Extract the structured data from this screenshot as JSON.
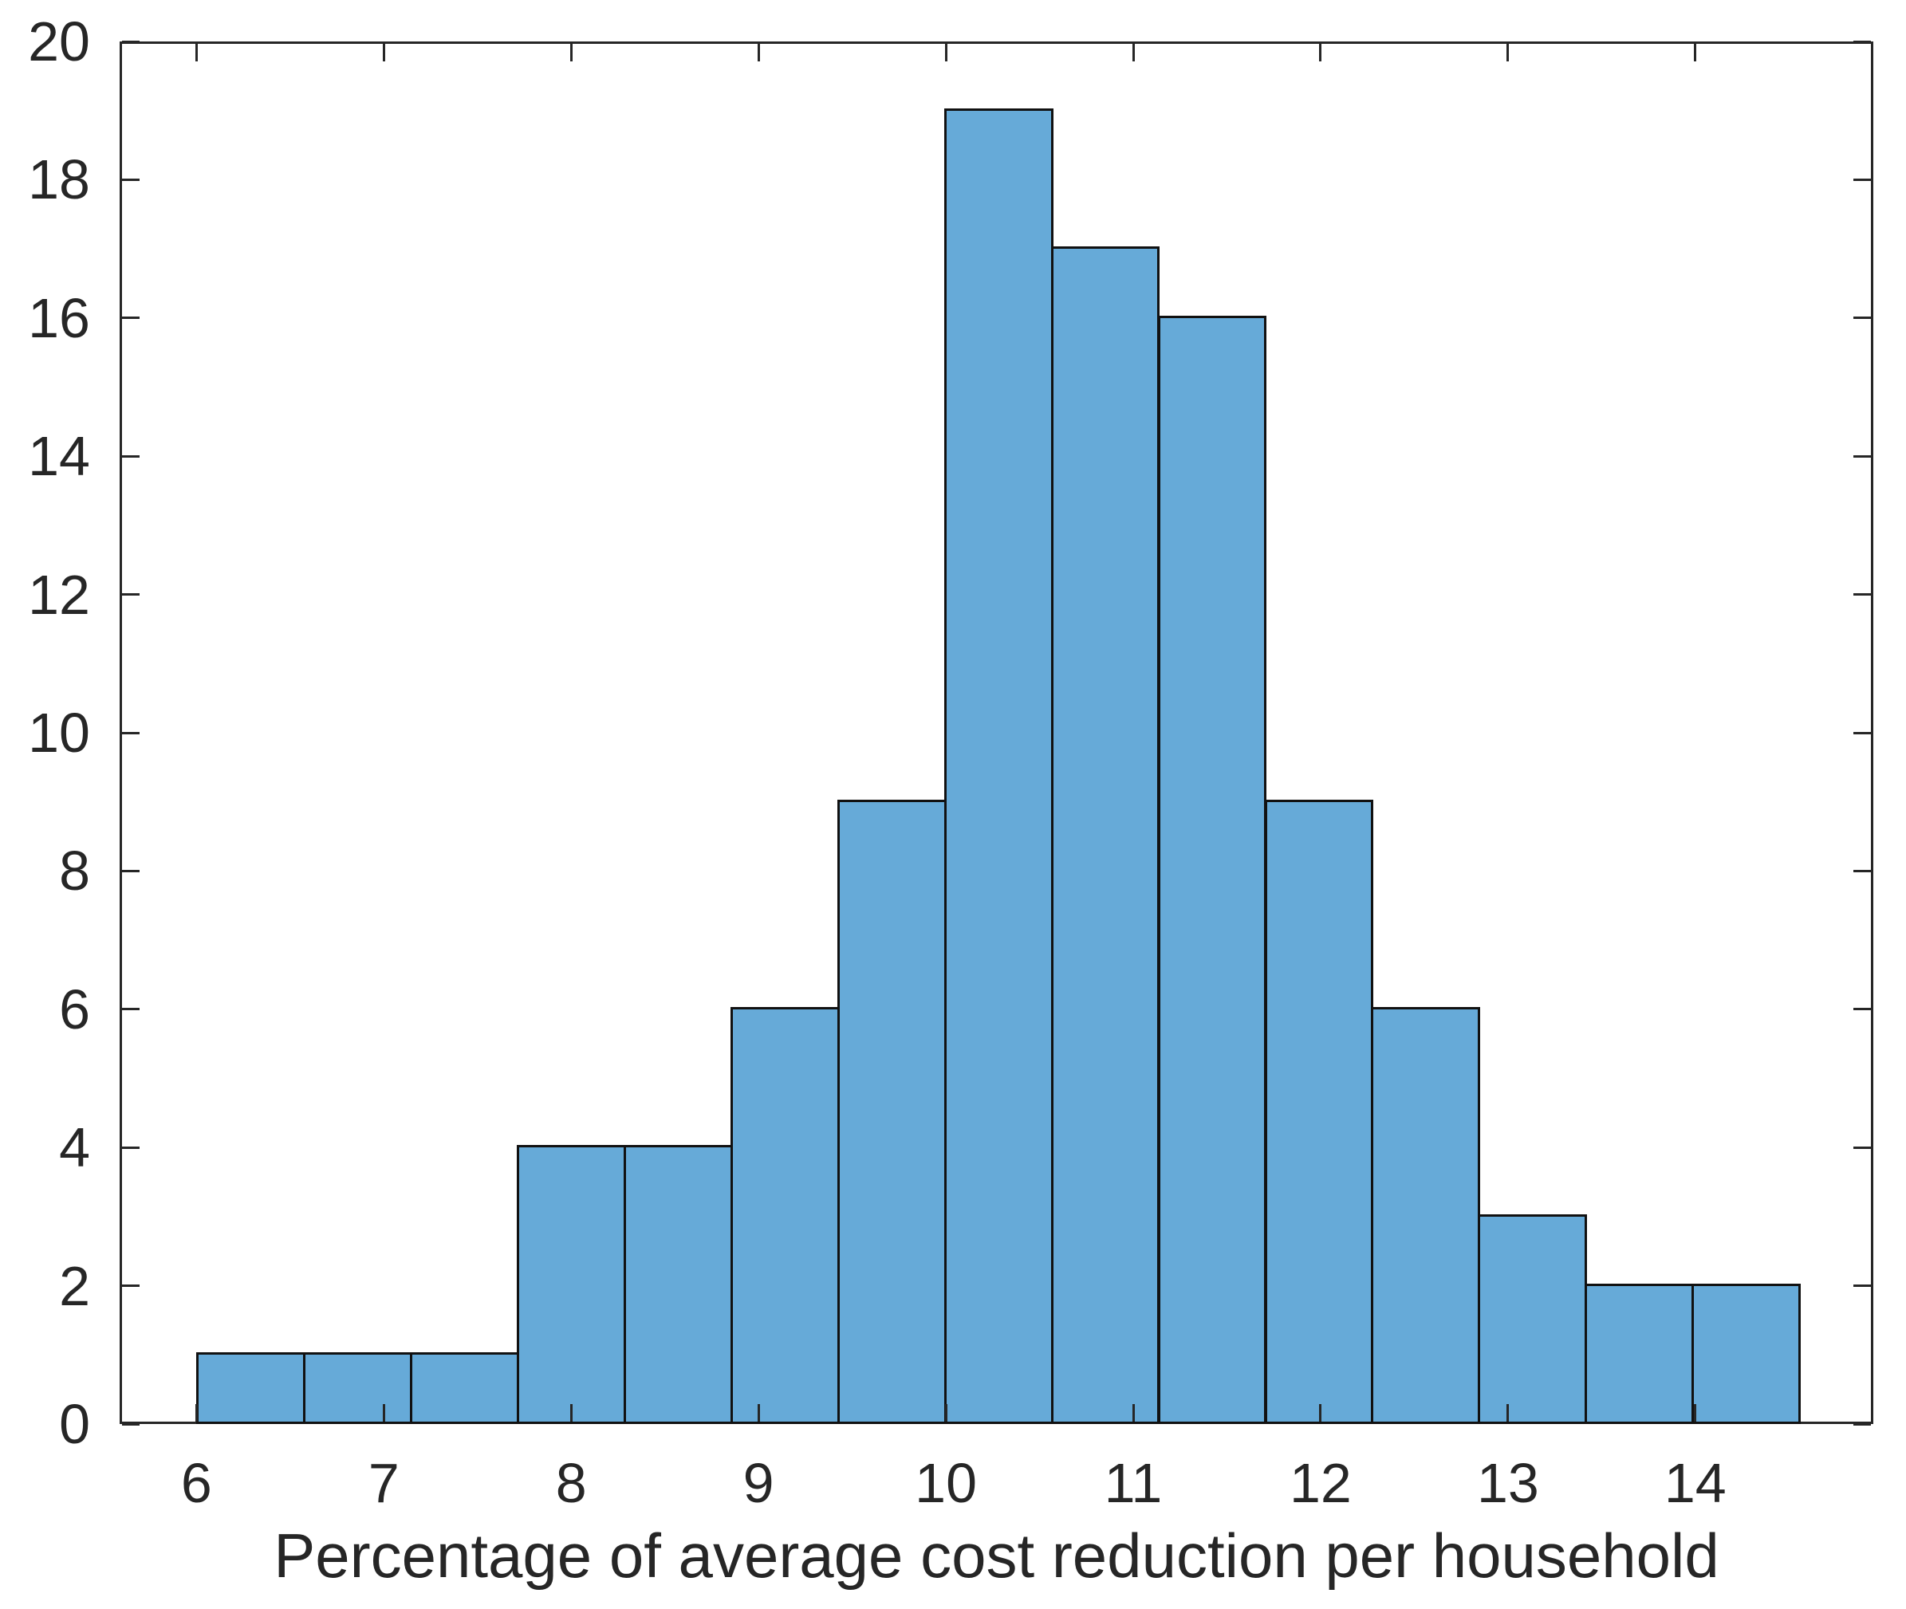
{
  "chart_data": {
    "type": "bar",
    "subtype": "histogram",
    "title": "",
    "xlabel": "Percentage of average cost reduction per household",
    "ylabel": "",
    "bin_edges": [
      6.0,
      6.57,
      7.14,
      7.71,
      8.28,
      8.85,
      9.42,
      9.99,
      10.56,
      11.13,
      11.7,
      12.27,
      12.84,
      13.41,
      13.98,
      14.55
    ],
    "counts": [
      1,
      1,
      1,
      4,
      4,
      6,
      9,
      19,
      17,
      16,
      9,
      6,
      3,
      2,
      2
    ],
    "xticks": [
      6,
      7,
      8,
      9,
      10,
      11,
      12,
      13,
      14
    ],
    "yticks": [
      0,
      2,
      4,
      6,
      8,
      10,
      12,
      14,
      16,
      18,
      20
    ],
    "xlim": [
      5.59,
      14.95
    ],
    "ylim": [
      0,
      20
    ],
    "grid": false,
    "legend": null,
    "colors": {
      "bar_fill": "#66aad8",
      "bar_edge": "#111111",
      "axis": "#262626",
      "text": "#262626",
      "background": "#ffffff"
    }
  }
}
